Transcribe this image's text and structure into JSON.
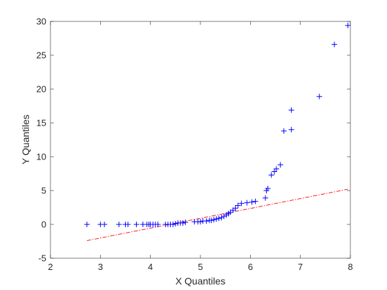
{
  "chart_data": {
    "type": "scatter",
    "title": "",
    "xlabel": "X Quantiles",
    "ylabel": "Y Quantiles",
    "xlim": [
      2,
      8
    ],
    "ylim": [
      -5,
      30
    ],
    "xticks": [
      2,
      3,
      4,
      5,
      6,
      7,
      8
    ],
    "yticks": [
      -5,
      0,
      5,
      10,
      15,
      20,
      25,
      30
    ],
    "grid": false,
    "legend": "none",
    "marker_color": "#0000ff",
    "reference_line_color": "#ff0000",
    "series": [
      {
        "marker": "+",
        "points": [
          [
            2.73,
            0.0
          ],
          [
            3.0,
            0.0
          ],
          [
            3.08,
            0.0
          ],
          [
            3.37,
            0.0
          ],
          [
            3.5,
            0.0
          ],
          [
            3.55,
            0.0
          ],
          [
            3.72,
            0.0
          ],
          [
            3.85,
            0.0
          ],
          [
            3.93,
            0.0
          ],
          [
            3.97,
            0.0
          ],
          [
            4.0,
            0.0
          ],
          [
            4.05,
            0.0
          ],
          [
            4.1,
            0.0
          ],
          [
            4.15,
            0.0
          ],
          [
            4.3,
            0.0
          ],
          [
            4.35,
            0.0
          ],
          [
            4.4,
            0.0
          ],
          [
            4.45,
            0.0
          ],
          [
            4.5,
            0.1
          ],
          [
            4.55,
            0.2
          ],
          [
            4.6,
            0.2
          ],
          [
            4.65,
            0.2
          ],
          [
            4.7,
            0.3
          ],
          [
            4.88,
            0.4
          ],
          [
            4.95,
            0.4
          ],
          [
            5.0,
            0.4
          ],
          [
            5.05,
            0.5
          ],
          [
            5.12,
            0.5
          ],
          [
            5.18,
            0.6
          ],
          [
            5.22,
            0.6
          ],
          [
            5.27,
            0.7
          ],
          [
            5.32,
            0.8
          ],
          [
            5.37,
            0.9
          ],
          [
            5.42,
            1.0
          ],
          [
            5.47,
            1.2
          ],
          [
            5.52,
            1.4
          ],
          [
            5.56,
            1.6
          ],
          [
            5.6,
            1.8
          ],
          [
            5.65,
            2.1
          ],
          [
            5.7,
            2.4
          ],
          [
            5.75,
            2.8
          ],
          [
            5.82,
            3.1
          ],
          [
            5.93,
            3.2
          ],
          [
            6.03,
            3.3
          ],
          [
            6.1,
            3.4
          ],
          [
            6.3,
            3.9
          ],
          [
            6.32,
            5.0
          ],
          [
            6.35,
            5.3
          ],
          [
            6.42,
            7.3
          ],
          [
            6.48,
            7.8
          ],
          [
            6.52,
            8.2
          ],
          [
            6.6,
            8.8
          ],
          [
            6.67,
            13.8
          ],
          [
            6.82,
            14.0
          ],
          [
            6.82,
            16.9
          ],
          [
            7.38,
            18.9
          ],
          [
            7.68,
            26.6
          ],
          [
            7.95,
            29.4
          ]
        ]
      }
    ],
    "reference_line": {
      "x": [
        2.73,
        7.95
      ],
      "y": [
        -2.4,
        5.2
      ]
    }
  }
}
